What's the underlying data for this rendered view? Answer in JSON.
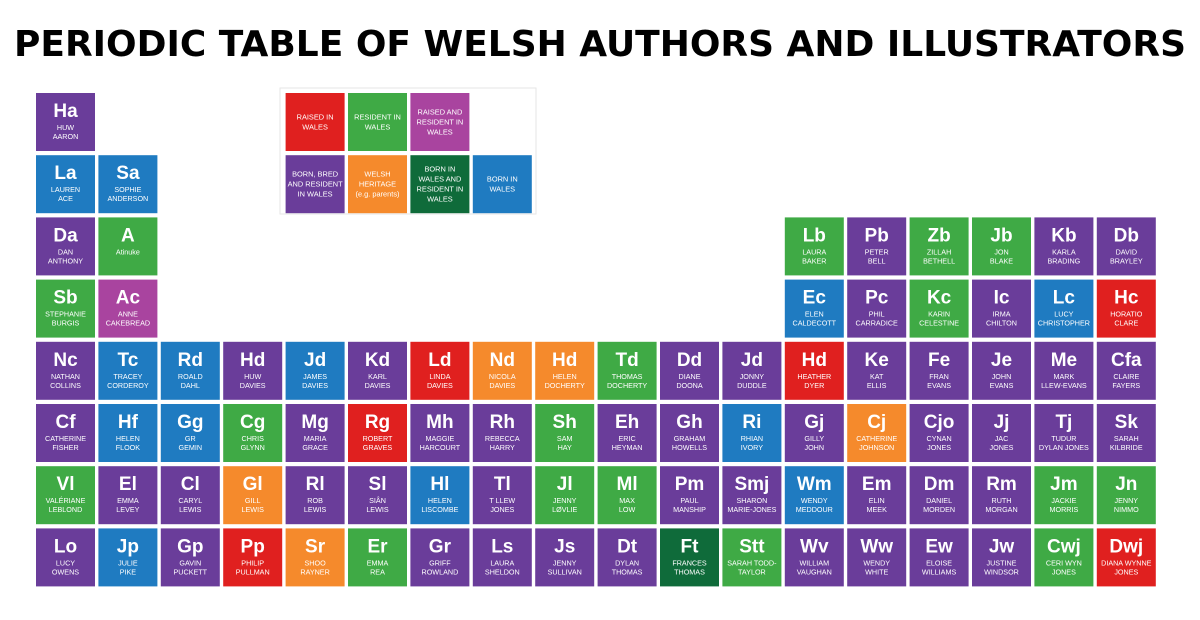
{
  "title": "PERIODIC TABLE OF WELSH AUTHORS AND ILLUSTRATORS",
  "legend": [
    [
      {
        "lines": [
          "RAISED IN",
          "WALES"
        ],
        "color": "#e0201f"
      },
      {
        "lines": [
          "RESIDENT IN",
          "WALES"
        ],
        "color": "#3faa45"
      },
      {
        "lines": [
          "RAISED AND",
          "RESIDENT IN",
          "WALES"
        ],
        "color": "#a9449f"
      }
    ],
    [
      {
        "lines": [
          "BORN, BRED",
          "AND RESIDENT",
          "IN WALES"
        ],
        "color": "#6a3d9a"
      },
      {
        "lines": [
          "WELSH",
          "HERITAGE",
          "(e.g. parents)"
        ],
        "color": "#f58a2c"
      },
      {
        "lines": [
          "BORN IN",
          "WALES AND",
          "RESIDENT IN",
          "WALES"
        ],
        "color": "#0f6b3a"
      },
      {
        "lines": [
          "BORN IN",
          "WALES"
        ],
        "color": "#1f7bc1"
      }
    ]
  ],
  "rows": [
    [
      {
        "symbol": "Ha",
        "name": [
          "HUW",
          "AARON"
        ],
        "color": "#6a3d9a"
      },
      null,
      null,
      null,
      null,
      null,
      null,
      null,
      null,
      null,
      null,
      null,
      null,
      null,
      null,
      null,
      null,
      null
    ],
    [
      {
        "symbol": "La",
        "name": [
          "LAUREN",
          "ACE"
        ],
        "color": "#1f7bc1"
      },
      {
        "symbol": "Sa",
        "name": [
          "SOPHIE",
          "ANDERSON"
        ],
        "color": "#1f7bc1"
      },
      null,
      null,
      null,
      null,
      null,
      null,
      null,
      null,
      null,
      null,
      null,
      null,
      null,
      null,
      null,
      null
    ],
    [
      {
        "symbol": "Da",
        "name": [
          "DAN",
          "ANTHONY"
        ],
        "color": "#6a3d9a"
      },
      {
        "symbol": "A",
        "name": [
          "Atinuke"
        ],
        "color": "#3faa45"
      },
      null,
      null,
      null,
      null,
      null,
      null,
      null,
      null,
      null,
      null,
      {
        "symbol": "Lb",
        "name": [
          "LAURA",
          "BAKER"
        ],
        "color": "#3faa45"
      },
      {
        "symbol": "Pb",
        "name": [
          "PETER",
          "BELL"
        ],
        "color": "#6a3d9a"
      },
      {
        "symbol": "Zb",
        "name": [
          "ZILLAH",
          "BETHELL"
        ],
        "color": "#3faa45"
      },
      {
        "symbol": "Jb",
        "name": [
          "JON",
          "BLAKE"
        ],
        "color": "#3faa45"
      },
      {
        "symbol": "Kb",
        "name": [
          "KARLA",
          "BRADING"
        ],
        "color": "#6a3d9a"
      },
      {
        "symbol": "Db",
        "name": [
          "DAVID",
          "BRAYLEY"
        ],
        "color": "#6a3d9a"
      }
    ],
    [
      {
        "symbol": "Sb",
        "name": [
          "STEPHANIE",
          "BURGIS"
        ],
        "color": "#3faa45"
      },
      {
        "symbol": "Ac",
        "name": [
          "ANNE",
          "CAKEBREAD"
        ],
        "color": "#a9449f"
      },
      null,
      null,
      null,
      null,
      null,
      null,
      null,
      null,
      null,
      null,
      {
        "symbol": "Ec",
        "name": [
          "ELEN",
          "CALDECOTT"
        ],
        "color": "#1f7bc1"
      },
      {
        "symbol": "Pc",
        "name": [
          "PHIL",
          "CARRADICE"
        ],
        "color": "#6a3d9a"
      },
      {
        "symbol": "Kc",
        "name": [
          "KARIN",
          "CELESTINE"
        ],
        "color": "#3faa45"
      },
      {
        "symbol": "Ic",
        "name": [
          "IRMA",
          "CHILTON"
        ],
        "color": "#6a3d9a"
      },
      {
        "symbol": "Lc",
        "name": [
          "LUCY",
          "CHRISTOPHER"
        ],
        "color": "#1f7bc1"
      },
      {
        "symbol": "Hc",
        "name": [
          "HORATIO",
          "CLARE"
        ],
        "color": "#e0201f"
      }
    ],
    [
      {
        "symbol": "Nc",
        "name": [
          "NATHAN",
          "COLLINS"
        ],
        "color": "#6a3d9a"
      },
      {
        "symbol": "Tc",
        "name": [
          "TRACEY",
          "CORDEROY"
        ],
        "color": "#1f7bc1"
      },
      {
        "symbol": "Rd",
        "name": [
          "ROALD",
          "DAHL"
        ],
        "color": "#1f7bc1"
      },
      {
        "symbol": "Hd",
        "name": [
          "HUW",
          "DAVIES"
        ],
        "color": "#6a3d9a"
      },
      {
        "symbol": "Jd",
        "name": [
          "JAMES",
          "DAVIES"
        ],
        "color": "#1f7bc1"
      },
      {
        "symbol": "Kd",
        "name": [
          "KARL",
          "DAVIES"
        ],
        "color": "#6a3d9a"
      },
      {
        "symbol": "Ld",
        "name": [
          "LINDA",
          "DAVIES"
        ],
        "color": "#e0201f"
      },
      {
        "symbol": "Nd",
        "name": [
          "NICOLA",
          "DAVIES"
        ],
        "color": "#f58a2c"
      },
      {
        "symbol": "Hd",
        "name": [
          "HELEN",
          "DOCHERTY"
        ],
        "color": "#f58a2c"
      },
      {
        "symbol": "Td",
        "name": [
          "THOMAS",
          "DOCHERTY"
        ],
        "color": "#3faa45"
      },
      {
        "symbol": "Dd",
        "name": [
          "DIANE",
          "DOONA"
        ],
        "color": "#6a3d9a"
      },
      {
        "symbol": "Jd",
        "name": [
          "JONNY",
          "DUDDLE"
        ],
        "color": "#6a3d9a"
      },
      {
        "symbol": "Hd",
        "name": [
          "HEATHER",
          "DYER"
        ],
        "color": "#e0201f"
      },
      {
        "symbol": "Ke",
        "name": [
          "KAT",
          "ELLIS"
        ],
        "color": "#6a3d9a"
      },
      {
        "symbol": "Fe",
        "name": [
          "FRAN",
          "EVANS"
        ],
        "color": "#6a3d9a"
      },
      {
        "symbol": "Je",
        "name": [
          "JOHN",
          "EVANS"
        ],
        "color": "#6a3d9a"
      },
      {
        "symbol": "Me",
        "name": [
          "MARK",
          "LLEW-EVANS"
        ],
        "color": "#6a3d9a"
      },
      {
        "symbol": "Cfa",
        "name": [
          "CLAIRE",
          "FAYERS"
        ],
        "color": "#6a3d9a"
      }
    ],
    [
      {
        "symbol": "Cf",
        "name": [
          "CATHERINE",
          "FISHER"
        ],
        "color": "#6a3d9a"
      },
      {
        "symbol": "Hf",
        "name": [
          "HELEN",
          "FLOOK"
        ],
        "color": "#1f7bc1"
      },
      {
        "symbol": "Gg",
        "name": [
          "GR",
          "GEMIN"
        ],
        "color": "#1f7bc1"
      },
      {
        "symbol": "Cg",
        "name": [
          "CHRIS",
          "GLYNN"
        ],
        "color": "#3faa45"
      },
      {
        "symbol": "Mg",
        "name": [
          "MARIA",
          "GRACE"
        ],
        "color": "#6a3d9a"
      },
      {
        "symbol": "Rg",
        "name": [
          "ROBERT",
          "GRAVES"
        ],
        "color": "#e0201f"
      },
      {
        "symbol": "Mh",
        "name": [
          "MAGGIE",
          "HARCOURT"
        ],
        "color": "#6a3d9a"
      },
      {
        "symbol": "Rh",
        "name": [
          "REBECCA",
          "HARRY"
        ],
        "color": "#6a3d9a"
      },
      {
        "symbol": "Sh",
        "name": [
          "SAM",
          "HAY"
        ],
        "color": "#3faa45"
      },
      {
        "symbol": "Eh",
        "name": [
          "ERIC",
          "HEYMAN"
        ],
        "color": "#6a3d9a"
      },
      {
        "symbol": "Gh",
        "name": [
          "GRAHAM",
          "HOWELLS"
        ],
        "color": "#6a3d9a"
      },
      {
        "symbol": "Ri",
        "name": [
          "RHIAN",
          "IVORY"
        ],
        "color": "#1f7bc1"
      },
      {
        "symbol": "Gj",
        "name": [
          "GILLY",
          "JOHN"
        ],
        "color": "#6a3d9a"
      },
      {
        "symbol": "Cj",
        "name": [
          "CATHERINE",
          "JOHNSON"
        ],
        "color": "#f58a2c"
      },
      {
        "symbol": "Cjo",
        "name": [
          "CYNAN",
          "JONES"
        ],
        "color": "#6a3d9a"
      },
      {
        "symbol": "Jj",
        "name": [
          "JAC",
          "JONES"
        ],
        "color": "#6a3d9a"
      },
      {
        "symbol": "Tj",
        "name": [
          "TUDUR",
          "DYLAN JONES"
        ],
        "color": "#6a3d9a"
      },
      {
        "symbol": "Sk",
        "name": [
          "SARAH",
          "KILBRIDE"
        ],
        "color": "#6a3d9a"
      }
    ],
    [
      {
        "symbol": "Vl",
        "name": [
          "VALÉRIANE",
          "LEBLOND"
        ],
        "color": "#3faa45"
      },
      {
        "symbol": "El",
        "name": [
          "EMMA",
          "LEVEY"
        ],
        "color": "#6a3d9a"
      },
      {
        "symbol": "Cl",
        "name": [
          "CARYL",
          "LEWIS"
        ],
        "color": "#6a3d9a"
      },
      {
        "symbol": "Gl",
        "name": [
          "GILL",
          "LEWIS"
        ],
        "color": "#f58a2c"
      },
      {
        "symbol": "Rl",
        "name": [
          "ROB",
          "LEWIS"
        ],
        "color": "#6a3d9a"
      },
      {
        "symbol": "Sl",
        "name": [
          "SIÂN",
          "LEWIS"
        ],
        "color": "#6a3d9a"
      },
      {
        "symbol": "Hl",
        "name": [
          "HELEN",
          "LISCOMBE"
        ],
        "color": "#1f7bc1"
      },
      {
        "symbol": "Tl",
        "name": [
          "T LLEW",
          "JONES"
        ],
        "color": "#6a3d9a"
      },
      {
        "symbol": "Jl",
        "name": [
          "JENNY",
          "LØVLIE"
        ],
        "color": "#3faa45"
      },
      {
        "symbol": "Ml",
        "name": [
          "MAX",
          "LOW"
        ],
        "color": "#3faa45"
      },
      {
        "symbol": "Pm",
        "name": [
          "PAUL",
          "MANSHIP"
        ],
        "color": "#6a3d9a"
      },
      {
        "symbol": "Smj",
        "name": [
          "SHARON",
          "MARIE-JONES"
        ],
        "color": "#6a3d9a"
      },
      {
        "symbol": "Wm",
        "name": [
          "WENDY",
          "MEDDOUR"
        ],
        "color": "#1f7bc1"
      },
      {
        "symbol": "Em",
        "name": [
          "ELIN",
          "MEEK"
        ],
        "color": "#6a3d9a"
      },
      {
        "symbol": "Dm",
        "name": [
          "DANIEL",
          "MORDEN"
        ],
        "color": "#6a3d9a"
      },
      {
        "symbol": "Rm",
        "name": [
          "RUTH",
          "MORGAN"
        ],
        "color": "#6a3d9a"
      },
      {
        "symbol": "Jm",
        "name": [
          "JACKIE",
          "MORRIS"
        ],
        "color": "#3faa45"
      },
      {
        "symbol": "Jn",
        "name": [
          "JENNY",
          "NIMMO"
        ],
        "color": "#3faa45"
      }
    ],
    [
      {
        "symbol": "Lo",
        "name": [
          "LUCY",
          "OWENS"
        ],
        "color": "#6a3d9a"
      },
      {
        "symbol": "Jp",
        "name": [
          "JULIE",
          "PIKE"
        ],
        "color": "#1f7bc1"
      },
      {
        "symbol": "Gp",
        "name": [
          "GAVIN",
          "PUCKETT"
        ],
        "color": "#6a3d9a"
      },
      {
        "symbol": "Pp",
        "name": [
          "PHILIP",
          "PULLMAN"
        ],
        "color": "#e0201f"
      },
      {
        "symbol": "Sr",
        "name": [
          "SHOO",
          "RAYNER"
        ],
        "color": "#f58a2c"
      },
      {
        "symbol": "Er",
        "name": [
          "EMMA",
          "REA"
        ],
        "color": "#3faa45"
      },
      {
        "symbol": "Gr",
        "name": [
          "GRIFF",
          "ROWLAND"
        ],
        "color": "#6a3d9a"
      },
      {
        "symbol": "Ls",
        "name": [
          "LAURA",
          "SHELDON"
        ],
        "color": "#6a3d9a"
      },
      {
        "symbol": "Js",
        "name": [
          "JENNY",
          "SULLIVAN"
        ],
        "color": "#6a3d9a"
      },
      {
        "symbol": "Dt",
        "name": [
          "DYLAN",
          "THOMAS"
        ],
        "color": "#6a3d9a"
      },
      {
        "symbol": "Ft",
        "name": [
          "FRANCES",
          "THOMAS"
        ],
        "color": "#0f6b3a"
      },
      {
        "symbol": "Stt",
        "name": [
          "SARAH TODD-",
          "TAYLOR"
        ],
        "color": "#3faa45"
      },
      {
        "symbol": "Wv",
        "name": [
          "WILLIAM",
          "VAUGHAN"
        ],
        "color": "#6a3d9a"
      },
      {
        "symbol": "Ww",
        "name": [
          "WENDY",
          "WHITE"
        ],
        "color": "#6a3d9a"
      },
      {
        "symbol": "Ew",
        "name": [
          "ELOISE",
          "WILLIAMS"
        ],
        "color": "#6a3d9a"
      },
      {
        "symbol": "Jw",
        "name": [
          "JUSTINE",
          "WINDSOR"
        ],
        "color": "#6a3d9a"
      },
      {
        "symbol": "Cwj",
        "name": [
          "CERI WYN",
          "JONES"
        ],
        "color": "#3faa45"
      },
      {
        "symbol": "Dwj",
        "name": [
          "DIANA WYNNE",
          "JONES"
        ],
        "color": "#e0201f"
      }
    ]
  ]
}
